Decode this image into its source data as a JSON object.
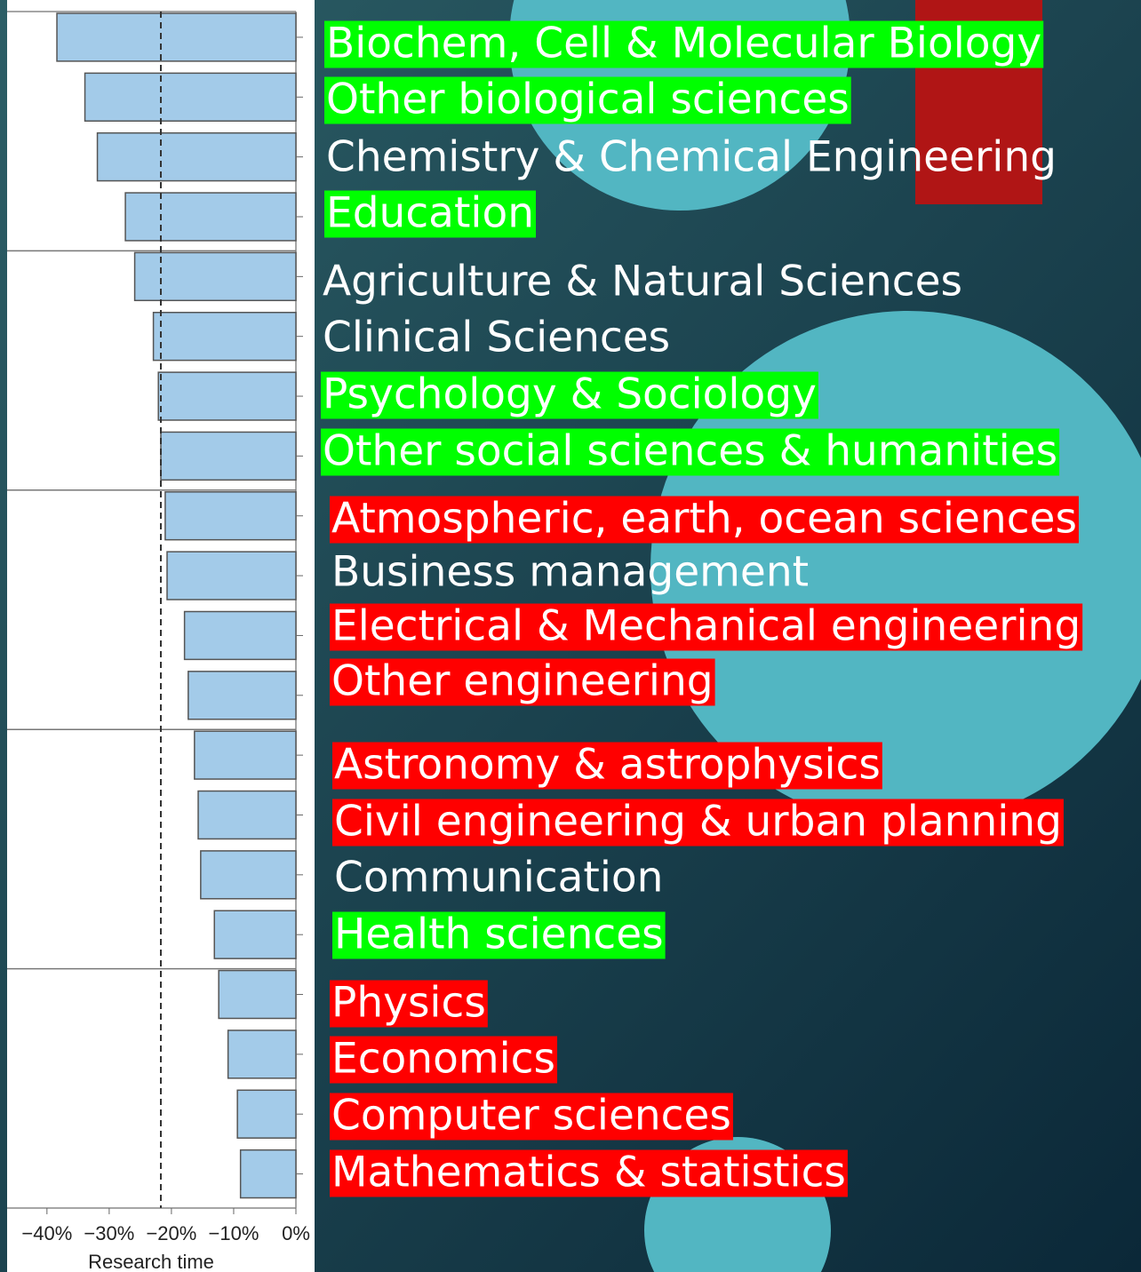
{
  "chart_data": {
    "type": "barh",
    "categories": [
      "Biochem, Cell & Molecular Biology",
      "Other biological sciences",
      "Chemistry & Chemical Engineering",
      "Education",
      "Agriculture & Natural Sciences",
      "Clinical Sciences",
      "Psychology & Sociology",
      "Other social sciences & humanities",
      "Atmospheric, earth, ocean sciences",
      "Business management",
      "Electrical & Mechanical engineering",
      "Other engineering",
      "Astronomy & astrophysics",
      "Civil engineering & urban planning",
      "Communication",
      "Health sciences",
      "Physics",
      "Economics",
      "Computer sciences",
      "Mathematics & statistics"
    ],
    "values": [
      -38.4,
      -33.9,
      -31.9,
      -27.4,
      -25.9,
      -22.9,
      -22.1,
      -21.7,
      -21.0,
      -20.7,
      -17.9,
      -17.3,
      -16.3,
      -15.7,
      -15.3,
      -13.1,
      -12.4,
      -10.9,
      -9.4,
      -8.9
    ],
    "label_highlights": [
      "#00ff00",
      "#00ff00",
      null,
      "#00ff00",
      null,
      null,
      "#00ff00",
      "#00ff00",
      "#ff0000",
      null,
      "#ff0000",
      "#ff0000",
      "#ff0000",
      "#ff0000",
      null,
      "#00ff00",
      "#ff0000",
      "#ff0000",
      "#ff0000",
      "#ff0000"
    ],
    "color": "#a3cbe9",
    "xlim": [
      -46.4,
      0
    ],
    "xticks": [
      {
        "value": -40,
        "label": "−40%"
      },
      {
        "value": -30,
        "label": "−30%"
      },
      {
        "value": -20,
        "label": "−20%"
      },
      {
        "value": -10,
        "label": "−10%"
      },
      {
        "value": 0,
        "label": "0%"
      }
    ],
    "xlabel": "Research time",
    "reference_line": -21.7
  }
}
